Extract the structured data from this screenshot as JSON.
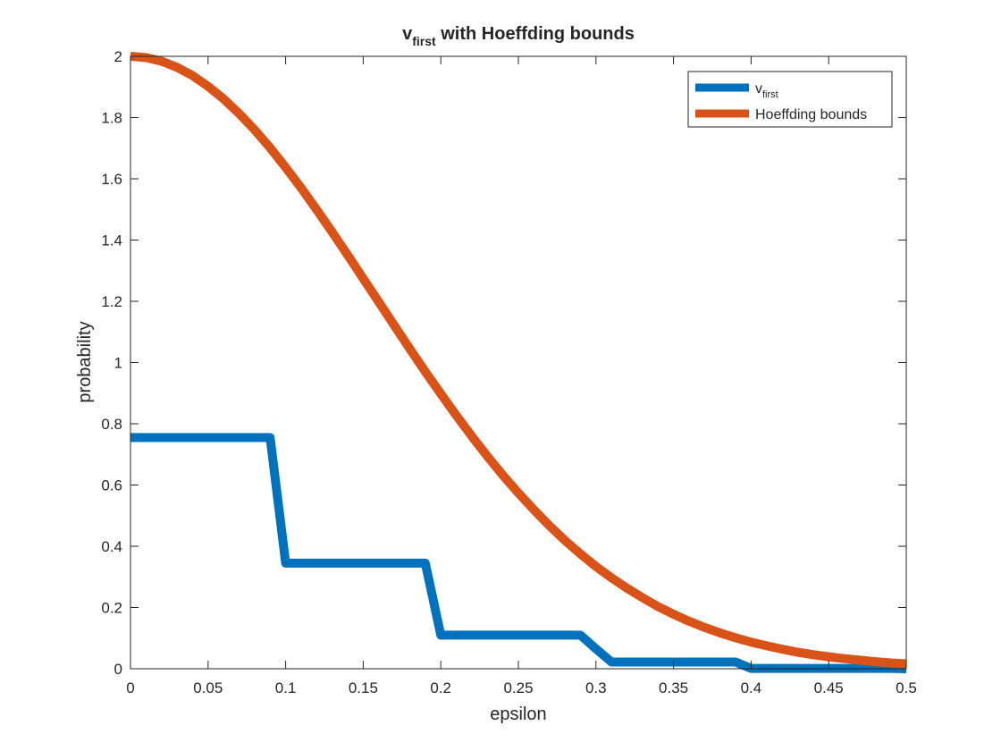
{
  "chart_data": {
    "type": "line",
    "title": {
      "main": "v",
      "subscript": "first",
      "rest": " with Hoeffding bounds"
    },
    "xlabel": "epsilon",
    "ylabel": "probability",
    "xlim": [
      0,
      0.5
    ],
    "ylim": [
      0,
      2
    ],
    "xticks": [
      0,
      0.05,
      0.1,
      0.15,
      0.2,
      0.25,
      0.3,
      0.35,
      0.4,
      0.45,
      0.5
    ],
    "xtick_labels": [
      "0",
      "0.05",
      "0.1",
      "0.15",
      "0.2",
      "0.25",
      "0.3",
      "0.35",
      "0.4",
      "0.45",
      "0.5"
    ],
    "yticks": [
      0,
      0.2,
      0.4,
      0.6,
      0.8,
      1,
      1.2,
      1.4,
      1.6,
      1.8,
      2
    ],
    "ytick_labels": [
      "0",
      "0.2",
      "0.4",
      "0.6",
      "0.8",
      "1",
      "1.2",
      "1.4",
      "1.6",
      "1.8",
      "2"
    ],
    "grid": false,
    "legend_position": "top-right",
    "series": [
      {
        "name": "v",
        "name_subscript": "first",
        "color": "#0072BD",
        "x": [
          0,
          0.01,
          0.02,
          0.03,
          0.04,
          0.05,
          0.06,
          0.07,
          0.08,
          0.09,
          0.1,
          0.11,
          0.12,
          0.13,
          0.14,
          0.15,
          0.16,
          0.17,
          0.18,
          0.19,
          0.2,
          0.21,
          0.22,
          0.23,
          0.24,
          0.25,
          0.26,
          0.27,
          0.28,
          0.29,
          0.3,
          0.31,
          0.32,
          0.33,
          0.34,
          0.35,
          0.36,
          0.37,
          0.38,
          0.39,
          0.4,
          0.41,
          0.42,
          0.43,
          0.44,
          0.45,
          0.46,
          0.47,
          0.48,
          0.49,
          0.5
        ],
        "y": [
          0.755,
          0.755,
          0.755,
          0.755,
          0.755,
          0.755,
          0.755,
          0.755,
          0.755,
          0.755,
          0.345,
          0.345,
          0.345,
          0.345,
          0.345,
          0.345,
          0.345,
          0.345,
          0.345,
          0.345,
          0.11,
          0.11,
          0.11,
          0.11,
          0.11,
          0.11,
          0.11,
          0.11,
          0.11,
          0.11,
          0.065,
          0.022,
          0.022,
          0.022,
          0.022,
          0.022,
          0.022,
          0.022,
          0.022,
          0.022,
          0.001,
          0.001,
          0.001,
          0.001,
          0.001,
          0.001,
          0.001,
          0.001,
          0.001,
          0.001,
          0.0
        ]
      },
      {
        "name": "Hoeffding bounds",
        "color": "#D95319",
        "x": [
          0,
          0.01,
          0.02,
          0.03,
          0.04,
          0.05,
          0.06,
          0.07,
          0.08,
          0.09,
          0.1,
          0.11,
          0.12,
          0.13,
          0.14,
          0.15,
          0.16,
          0.17,
          0.18,
          0.19,
          0.2,
          0.21,
          0.22,
          0.23,
          0.24,
          0.25,
          0.26,
          0.27,
          0.28,
          0.29,
          0.3,
          0.31,
          0.32,
          0.33,
          0.34,
          0.35,
          0.36,
          0.37,
          0.38,
          0.39,
          0.4,
          0.41,
          0.42,
          0.43,
          0.44,
          0.45,
          0.46,
          0.47,
          0.48,
          0.49,
          0.5
        ],
        "y": [
          2.0,
          1.996,
          1.984,
          1.964,
          1.937,
          1.902,
          1.861,
          1.813,
          1.76,
          1.701,
          1.637,
          1.57,
          1.499,
          1.426,
          1.351,
          1.274,
          1.198,
          1.121,
          1.045,
          0.97,
          0.898,
          0.827,
          0.759,
          0.694,
          0.632,
          0.574,
          0.519,
          0.467,
          0.419,
          0.375,
          0.334,
          0.297,
          0.263,
          0.232,
          0.203,
          0.178,
          0.155,
          0.135,
          0.117,
          0.101,
          0.087,
          0.075,
          0.064,
          0.054,
          0.046,
          0.039,
          0.033,
          0.028,
          0.023,
          0.019,
          0.016
        ]
      }
    ]
  }
}
